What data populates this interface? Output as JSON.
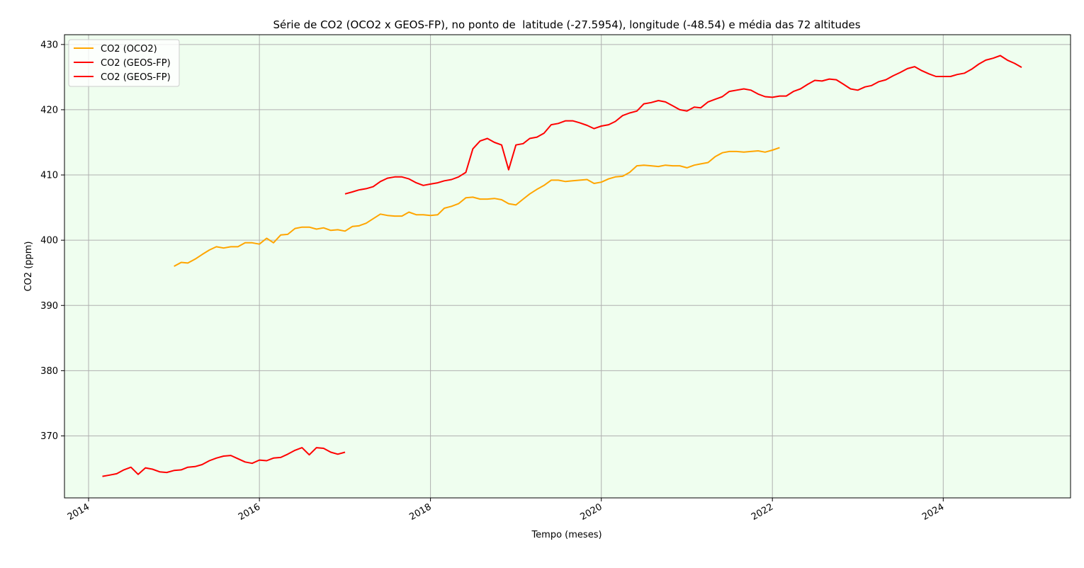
{
  "chart_data": {
    "type": "line",
    "title": "Série de CO2 (OCO2 x GEOS-FP), no ponto de  latitude (-27.5954), longitude (-48.54) e média das 72 altitudes",
    "xlabel": "Tempo (meses)",
    "ylabel": "CO2 (ppm)",
    "x_ticks": [
      "2014",
      "2016",
      "2018",
      "2020",
      "2022",
      "2024"
    ],
    "y_ticks": [
      "370",
      "380",
      "390",
      "400",
      "410",
      "420",
      "430"
    ],
    "xlim": [
      "2013-09-20",
      "2025-06-28"
    ],
    "ylim": [
      360.5,
      431.5
    ],
    "grid": true,
    "legend_position": "top-left",
    "plot_background": "#effeef",
    "series": [
      {
        "name": "CO2 (OCO2)",
        "color": "#ffa500",
        "x_start": "2015-01",
        "values": [
          396.0,
          396.6,
          396.5,
          397.1,
          397.8,
          398.5,
          399.0,
          398.8,
          399.0,
          399.0,
          399.6,
          399.6,
          399.4,
          400.3,
          399.6,
          400.8,
          400.9,
          401.8,
          402.0,
          402.0,
          401.7,
          401.9,
          401.5,
          401.6,
          401.4,
          402.1,
          402.2,
          402.6,
          403.3,
          404.0,
          403.8,
          403.7,
          403.7,
          404.3,
          403.9,
          403.9,
          403.8,
          403.9,
          404.9,
          405.2,
          405.6,
          406.5,
          406.6,
          406.3,
          406.3,
          406.4,
          406.2,
          405.6,
          405.4,
          406.3,
          407.1,
          407.8,
          408.4,
          409.2,
          409.2,
          409.0,
          409.1,
          409.2,
          409.3,
          408.7,
          408.9,
          409.4,
          409.7,
          409.8,
          410.4,
          411.4,
          411.5,
          411.4,
          411.3,
          411.5,
          411.4,
          411.4,
          411.1,
          411.5,
          411.7,
          411.9,
          412.8,
          413.4,
          413.6,
          413.6,
          413.5,
          413.6,
          413.7,
          413.5,
          413.8,
          414.2
        ]
      },
      {
        "name": "CO2 (GEOS-FP)",
        "color": "#ff0000",
        "x_start": "2014-03",
        "values": [
          363.8,
          364.0,
          364.2,
          364.8,
          365.2,
          364.1,
          365.1,
          364.9,
          364.5,
          364.4,
          364.7,
          364.8,
          365.2,
          365.3,
          365.6,
          366.2,
          366.6,
          366.9,
          367.0,
          366.5,
          366.0,
          365.8,
          366.3,
          366.2,
          366.6,
          366.7,
          367.2,
          367.8,
          368.2,
          367.1,
          368.2,
          368.1,
          367.5,
          367.2,
          367.5
        ]
      },
      {
        "name": "CO2 (GEOS-FP)",
        "color": "#ff0000",
        "x_start": "2017-01",
        "values": [
          407.1,
          407.4,
          407.7,
          407.9,
          408.2,
          409.0,
          409.5,
          409.7,
          409.7,
          409.4,
          408.8,
          408.4,
          408.6,
          408.8,
          409.1,
          409.3,
          409.7,
          410.4,
          414.0,
          415.2,
          415.6,
          415.0,
          414.6,
          410.8,
          414.6,
          414.8,
          415.6,
          415.8,
          416.4,
          417.7,
          417.9,
          418.3,
          418.3,
          418.0,
          417.6,
          417.1,
          417.5,
          417.7,
          418.2,
          419.1,
          419.5,
          419.8,
          420.9,
          421.1,
          421.4,
          421.2,
          420.6,
          420.0,
          419.8,
          420.4,
          420.3,
          421.2,
          421.6,
          422.0,
          422.8,
          423.0,
          423.2,
          423.0,
          422.4,
          422.0,
          421.9,
          422.1,
          422.1,
          422.8,
          423.2,
          423.9,
          424.5,
          424.4,
          424.7,
          424.6,
          423.9,
          423.2,
          423.0,
          423.5,
          423.7,
          424.3,
          424.6,
          425.2,
          425.7,
          426.3,
          426.6,
          426.0,
          425.5,
          425.1,
          425.1,
          425.1,
          425.4,
          425.6,
          426.2,
          427.0,
          427.6,
          427.9,
          428.3,
          427.6,
          427.1,
          426.5
        ]
      }
    ],
    "legend": [
      "CO2 (OCO2)",
      "CO2 (GEOS-FP)",
      "CO2 (GEOS-FP)"
    ]
  }
}
